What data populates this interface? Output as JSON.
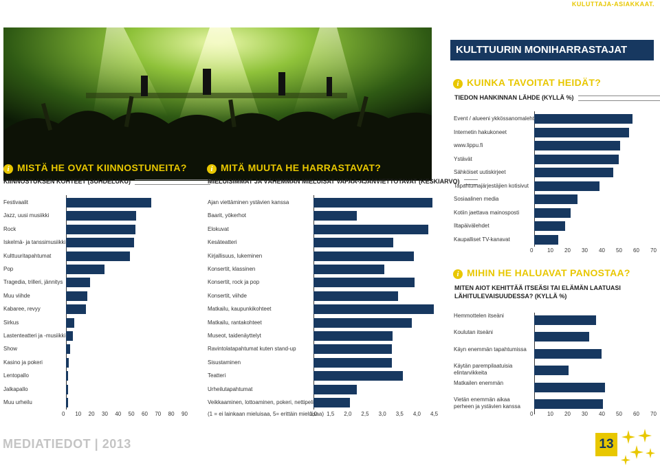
{
  "brand_top": "KULUTTAJA-ASIAKKAAT.",
  "title_bar": "KULTTUURIN MONIHARRASTAJAT",
  "section_left": {
    "heading": "MISTÄ HE OVAT KIINNOSTUNEITA?",
    "subheading": "KIINNOSTUKSEN KOHTEET (SUHDELUKU)"
  },
  "section_mid": {
    "heading": "MITÄ MUUTA HE HARRASTAVAT?",
    "subheading": "MIELUISIMMAT JA VÄHEMMÄN MIELUISAT VAPAA-AJANVIETTOTAVAT (KESKIARVO)"
  },
  "section_right_top": {
    "heading": "KUINKA TAVOITAT HEIDÄT?",
    "subheading": "TIEDON HANKINNAN LÄHDE (KYLLÄ %)"
  },
  "section_right_bottom": {
    "heading": "MIHIN HE HALUAVAT PANOSTAA?",
    "subheading": "MITEN AIOT KEHITTÄÄ ITSEÄSI TAI ELÄMÄN LAATUASI LÄHITULEVAISUUDESSA? (KYLLÄ %)"
  },
  "footer": {
    "left": "MEDIATIEDOT | 2013",
    "page": "13"
  },
  "colors": {
    "bar": "#173860",
    "accent": "#e8c700"
  },
  "chart_data": [
    {
      "type": "bar",
      "orientation": "horizontal",
      "categories": [
        "Festivaalit",
        "Jazz, uusi musiikki",
        "Rock",
        "Iskelmä- ja tanssimusiikki",
        "Kulttuuritapahtumat",
        "Pop",
        "Tragedia, trilleri, jännitys",
        "Muu viihde",
        "Kabaree, revyy",
        "Sirkus",
        "Lastenteatteri ja -musiikki",
        "Show",
        "Kasino ja pokeri",
        "Lentopallo",
        "Jalkapallo",
        "Muu urheilu"
      ],
      "values": [
        64,
        53,
        52,
        51,
        48,
        29,
        18,
        16,
        15,
        6,
        5,
        3,
        2,
        1.5,
        1.5,
        1.5
      ],
      "xlim": [
        0,
        90
      ],
      "xticks": [
        "0",
        "10",
        "20",
        "30",
        "40",
        "50",
        "60",
        "70",
        "80",
        "90"
      ]
    },
    {
      "type": "bar",
      "orientation": "horizontal",
      "categories": [
        "Ajan viettäminen ystävien kanssa",
        "Baarit, yökerhot",
        "Elokuvat",
        "Kesäteatteri",
        "Kirjallisuus, lukeminen",
        "Konsertit, klassinen",
        "Konsertit, rock ja pop",
        "Konsertit, viihde",
        "Matkailu, kaupunkikohteet",
        "Matkailu, rantakohteet",
        "Museot, taidenäyttelyt",
        "Ravintolatapahtumat kuten stand-up",
        "Sisustaminen",
        "Teatteri",
        "Urheilutapahtumat",
        "Veikkaaminen, lottoaminen, pokeri, nettipelit"
      ],
      "values": [
        4.45,
        2.25,
        4.32,
        3.3,
        3.9,
        3.05,
        3.92,
        3.45,
        4.48,
        3.84,
        3.28,
        3.26,
        3.27,
        3.58,
        2.26,
        2.06
      ],
      "xlim": [
        1.0,
        4.5
      ],
      "xticks": [
        "1,0",
        "1,5",
        "2,0",
        "2,5",
        "3,0",
        "3,5",
        "4,0",
        "4,5"
      ],
      "xlabel": "(1 = ei lainkaan mieluisaa, 5= erittäin mieluisaa)"
    },
    {
      "type": "bar",
      "orientation": "horizontal",
      "categories": [
        "Event / alueeni ykkössanomalehti",
        "Internetin hakukoneet",
        "www.lippu.fi",
        "Ystävät",
        "Sähköiset uutiskirjeet",
        "Tapahtumajärjestäjien kotisivut",
        "Sosiaalinen media",
        "Kotiin jaettava mainosposti",
        "Iltapäivälehdet",
        "Kaupalliset TV-kanavat"
      ],
      "values": [
        57,
        55,
        50,
        49,
        46,
        38,
        25,
        21,
        18,
        14
      ],
      "xlim": [
        0,
        70
      ],
      "xticks": [
        "0",
        "10",
        "20",
        "30",
        "40",
        "50",
        "60",
        "70"
      ]
    },
    {
      "type": "bar",
      "orientation": "horizontal",
      "categories": [
        "Hemmottelen itseäni",
        "Koulutan itseäni",
        "Käyn enemmän tapahtumissa",
        "Käytän parempilaatuisia elintarvikkeita",
        "Matkailen enemmän",
        "Vietän enemmän aikaa perheen ja ystävien kanssa"
      ],
      "values": [
        36,
        32,
        39,
        20,
        41,
        40
      ],
      "xlim": [
        0,
        70
      ],
      "xticks": [
        "0",
        "10",
        "20",
        "30",
        "40",
        "50",
        "60",
        "70"
      ]
    }
  ]
}
